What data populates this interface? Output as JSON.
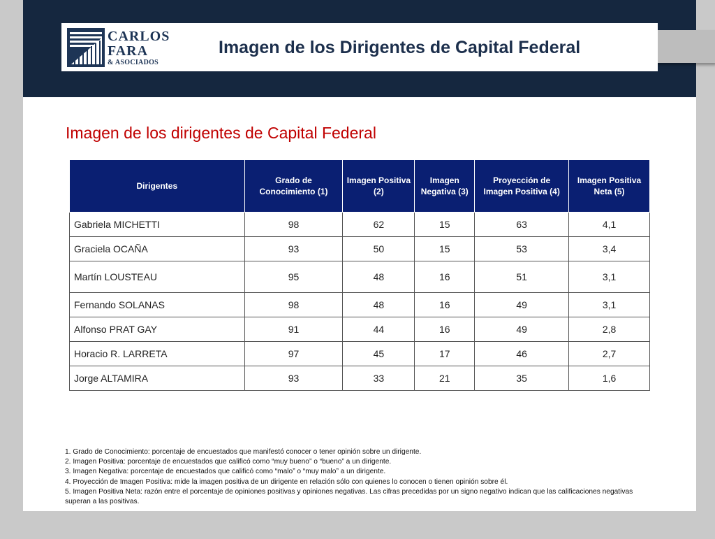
{
  "header": {
    "logo": {
      "line1": "CARLOS",
      "line2": "FARA",
      "line3": "& ASOCIADOS"
    },
    "title": "Imagen de los Dirigentes de Capital Federal"
  },
  "page_title": "Imagen de los dirigentes de Capital Federal",
  "table": {
    "columns": [
      "Dirigentes",
      "Grado de Conocimiento (1)",
      "Imagen Positiva (2)",
      "Imagen Negativa (3)",
      "Proyección de Imagen Positiva (4)",
      "Imagen Positiva Neta (5)"
    ],
    "rows": [
      [
        "Gabriela MICHETTI",
        "98",
        "62",
        "15",
        "63",
        "4,1"
      ],
      [
        "Graciela OCAÑA",
        "93",
        "50",
        "15",
        "53",
        "3,4"
      ],
      [
        "Martín LOUSTEAU",
        "95",
        "48",
        "16",
        "51",
        "3,1"
      ],
      [
        "Fernando SOLANAS",
        "98",
        "48",
        "16",
        "49",
        "3,1"
      ],
      [
        "Alfonso PRAT GAY",
        "91",
        "44",
        "16",
        "49",
        "2,8"
      ],
      [
        "Horacio R. LARRETA",
        "97",
        "45",
        "17",
        "46",
        "2,7"
      ],
      [
        "Jorge ALTAMIRA",
        "93",
        "33",
        "21",
        "35",
        "1,6"
      ]
    ]
  },
  "notes": [
    "1. Grado de Conocimiento: porcentaje de encuestados que manifestó conocer o tener opinión sobre un dirigente.",
    "2. Imagen Positiva: porcentaje de encuestados que calificó como “muy bueno” o “bueno” a un dirigente.",
    "3. Imagen Negativa: porcentaje de encuestados que calificó como “malo” o “muy malo” a un dirigente.",
    "4. Proyección de Imagen Positiva: mide la imagen positiva de un dirigente en relación sólo con quienes lo conocen o tienen opinión sobre él.",
    "5. Imagen Positiva Neta: razón entre el porcentaje de opiniones positivas y opiniones negativas. Las cifras precedidas por un signo negativo indican que las calificaciones negativas superan a las positivas."
  ],
  "colors": {
    "header_band": "#15273f",
    "table_header": "#0a1f72",
    "page_title": "#c00000"
  }
}
